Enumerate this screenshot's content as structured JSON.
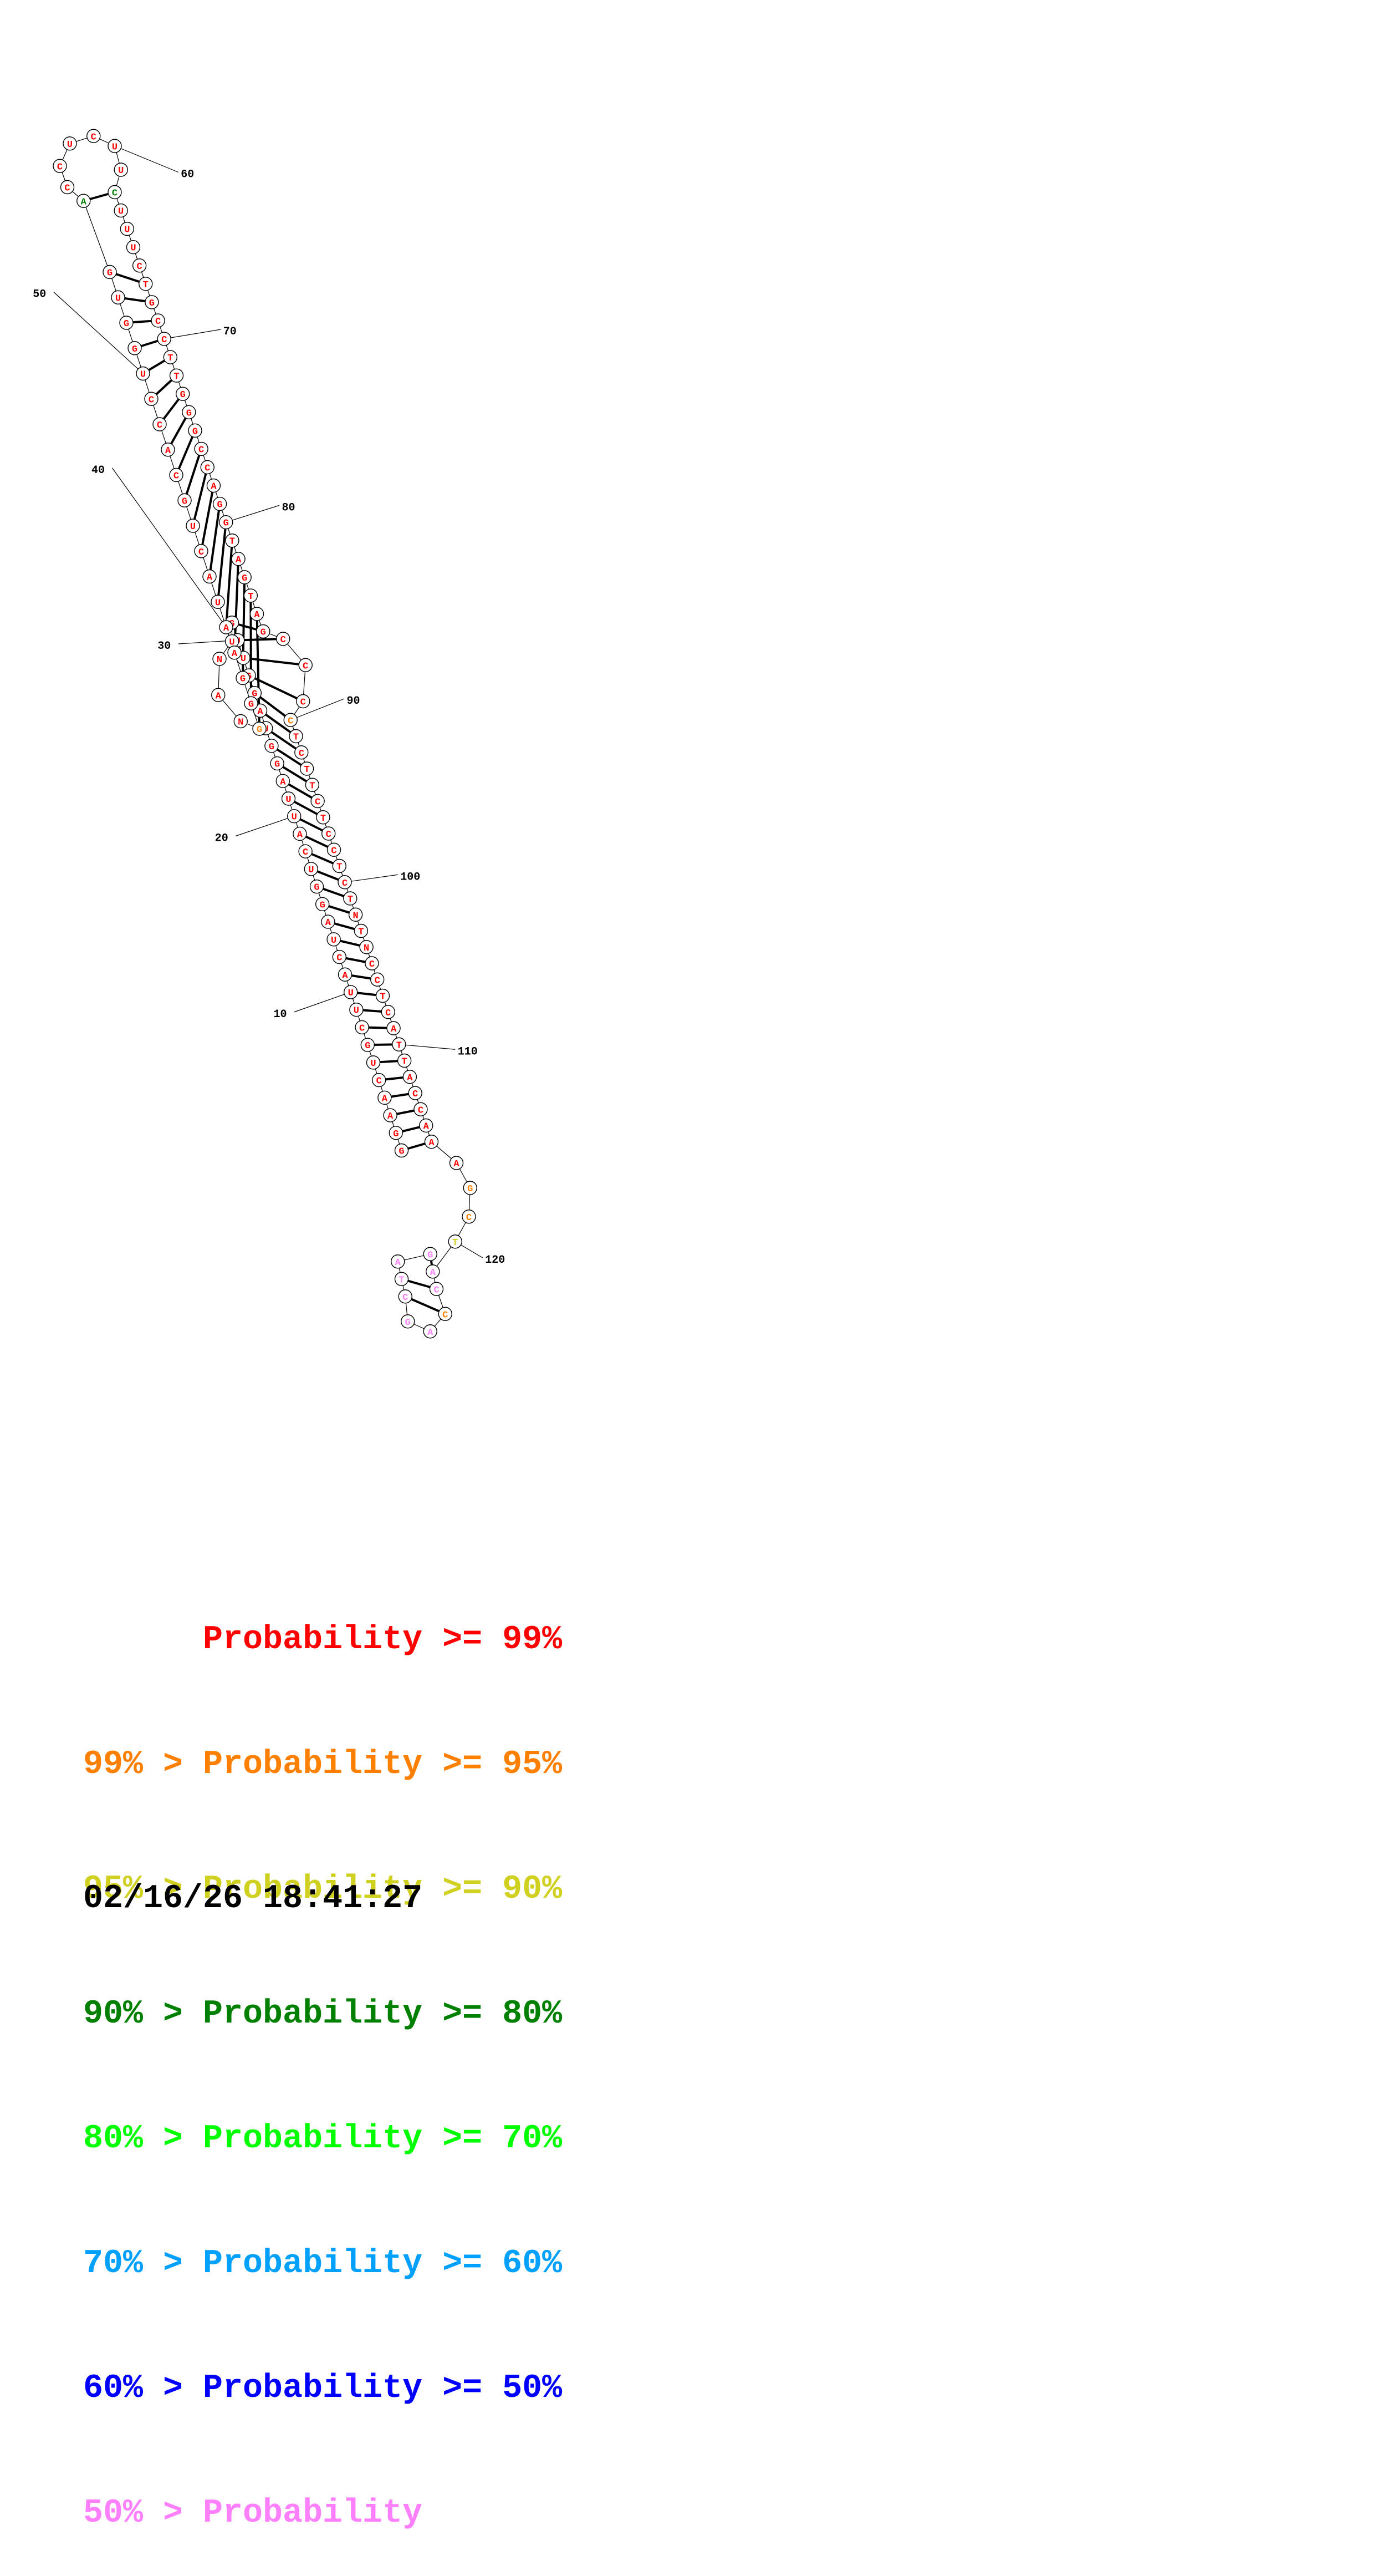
{
  "diagram": {
    "sequence": "GGAACUGCUUACUAGGUCAUUAGGUAGGUUGUNANGGGAAUACUGCACCUGGUGACCUCUUCUUUCTGCCTTGGGCCAGGTAGTAGCCCCTCTTCTCCTCTNTNCCTCATTACCAAAGCTACCAGCTAGTCGTGCGTTCCAA",
    "bases": [
      "G",
      "G",
      "A",
      "A",
      "C",
      "U",
      "G",
      "C",
      "U",
      "U",
      "A",
      "C",
      "U",
      "A",
      "G",
      "G",
      "U",
      "C",
      "A",
      "U",
      "U",
      "A",
      "G",
      "G",
      "U",
      "A",
      "G",
      "G",
      "U",
      "U",
      "G",
      "U",
      "N",
      "A",
      "N",
      "G",
      "G",
      "G",
      "A",
      "A",
      "U",
      "A",
      "C",
      "U",
      "G",
      "C",
      "A",
      "C",
      "C",
      "U",
      "G",
      "G",
      "U",
      "G",
      "A",
      "C",
      "C",
      "U",
      "C",
      "U",
      "U",
      "C",
      "U",
      "U",
      "U",
      "C",
      "T",
      "G",
      "C",
      "C",
      "T",
      "T",
      "G",
      "G",
      "G",
      "C",
      "C",
      "A",
      "G",
      "G",
      "T",
      "A",
      "G",
      "T",
      "A",
      "G",
      "C",
      "C",
      "C",
      "C",
      "T",
      "C",
      "T",
      "T",
      "C",
      "T",
      "C",
      "C",
      "T",
      "C",
      "T",
      "N",
      "T",
      "N",
      "C",
      "C",
      "T",
      "C",
      "A",
      "T",
      "T",
      "A",
      "C",
      "C",
      "A",
      "A",
      "A",
      "G",
      "C",
      "T",
      "A",
      "C",
      "C",
      "A",
      "G",
      "C",
      "T",
      "A",
      "G",
      "T",
      "C",
      "G",
      "T",
      "G",
      "C",
      "G",
      "T",
      "T",
      "C",
      "C",
      "A",
      "A"
    ],
    "position_labels": [
      "10",
      "20",
      "30",
      "40",
      "50",
      "60",
      "70",
      "80",
      "90",
      "100",
      "110",
      "120"
    ],
    "colors": {
      "p99": "#ff0000",
      "p95": "#ff8000",
      "p90": "#d0d020",
      "p80": "#008000",
      "p70": "#00ff00",
      "p60": "#00a0ff",
      "p50": "#0000ff",
      "plow": "#ff80ff"
    }
  },
  "legend": [
    {
      "text": "      Probability >= 99%",
      "color": "#ff0000"
    },
    {
      "text": "99% > Probability >= 95%",
      "color": "#ff8000"
    },
    {
      "text": "95% > Probability >= 90%",
      "color": "#d0d020"
    },
    {
      "text": "90% > Probability >= 80%",
      "color": "#008000"
    },
    {
      "text": "80% > Probability >= 70%",
      "color": "#00ff00"
    },
    {
      "text": "70% > Probability >= 60%",
      "color": "#00a0ff"
    },
    {
      "text": "60% > Probability >= 50%",
      "color": "#0000ff"
    },
    {
      "text": "50% > Probability",
      "color": "#ff80ff"
    }
  ],
  "timestamp": "02/16/26 18:41:27"
}
